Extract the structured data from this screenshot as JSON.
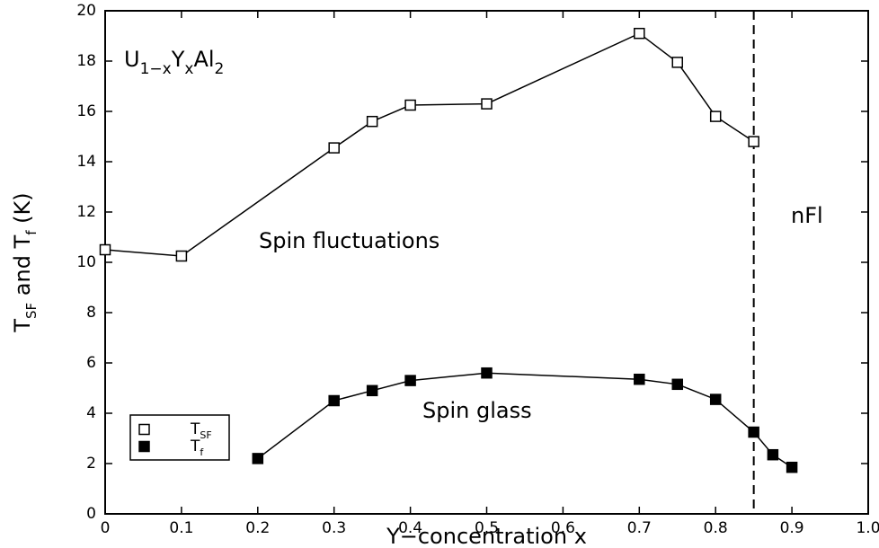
{
  "chart_data": {
    "type": "line",
    "x_label": "Y−concentration x",
    "y_label": [
      "T",
      "SF",
      " and T",
      "f",
      " (K)"
    ],
    "compound": [
      "U",
      "1−x",
      "Y",
      "x",
      "Al",
      "2"
    ],
    "annotations": [
      "Spin fluctuations",
      "Spin glass",
      "nFl"
    ],
    "boundary_x": 0.85,
    "xlim": [
      0,
      1
    ],
    "xticks": [
      0,
      0.1,
      0.2,
      0.3,
      0.4,
      0.5,
      0.6,
      0.7,
      0.8,
      0.9,
      {
        "value": 1,
        "label": "1.0"
      }
    ],
    "ylim": [
      0,
      20
    ],
    "yticks": [
      0,
      2,
      4,
      6,
      8,
      10,
      12,
      14,
      16,
      18,
      20
    ],
    "legend": "lower left",
    "series": [
      {
        "name": [
          "T",
          "SF"
        ],
        "color": "#000000",
        "marker": "open-square",
        "x": [
          0,
          0.1,
          0.3,
          0.35,
          0.4,
          0.5,
          0.7,
          0.75,
          0.8,
          0.85
        ],
        "values": [
          10.5,
          10.25,
          14.55,
          15.6,
          16.25,
          16.3,
          19.1,
          17.95,
          15.8,
          14.8
        ]
      },
      {
        "name": [
          "T",
          "f"
        ],
        "color": "#000000",
        "marker": "filled-square",
        "x": [
          0.2,
          0.3,
          0.35,
          0.4,
          0.5,
          0.7,
          0.75,
          0.8,
          0.85,
          0.875,
          0.9
        ],
        "values": [
          2.2,
          4.5,
          4.9,
          5.3,
          5.6,
          5.35,
          5.15,
          4.55,
          3.25,
          2.35,
          1.85
        ]
      }
    ]
  }
}
